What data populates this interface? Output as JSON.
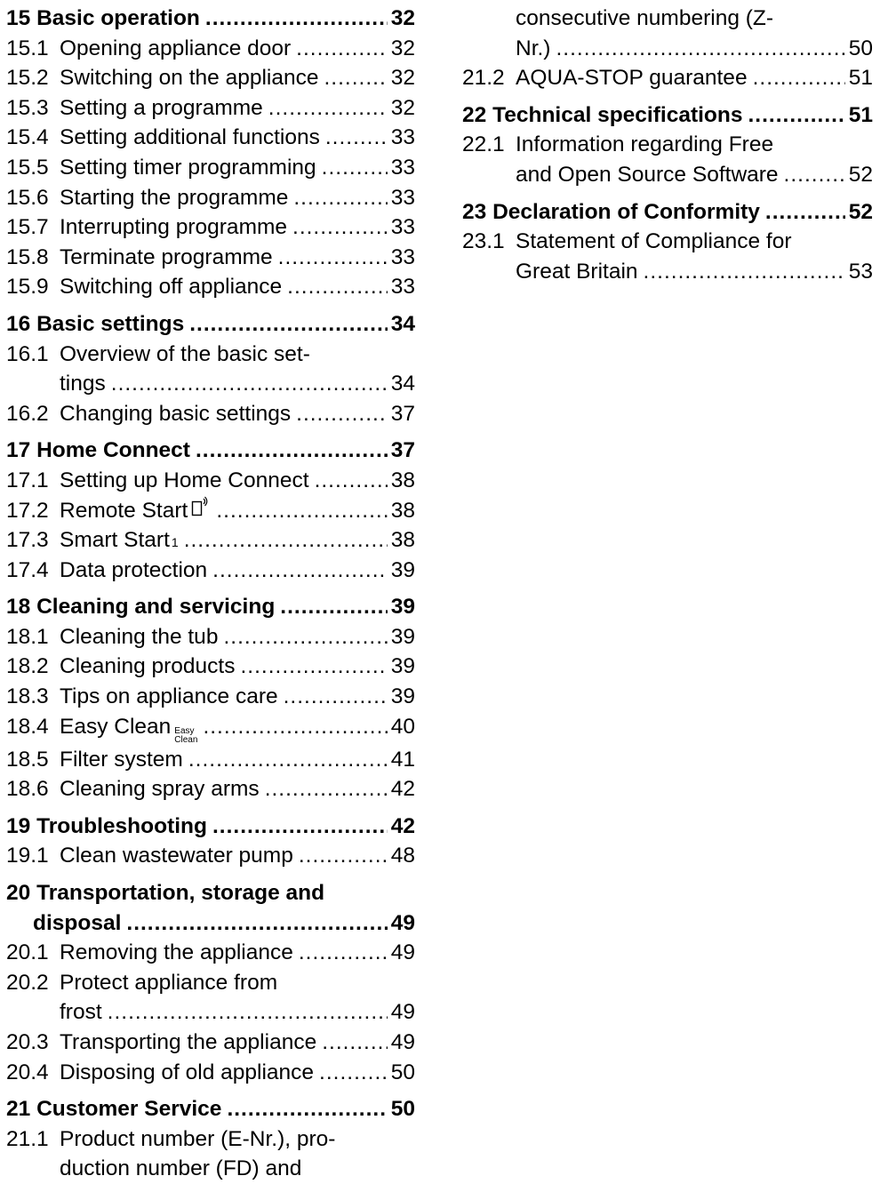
{
  "left": [
    {
      "type": "h",
      "num": "15",
      "title": "Basic operation",
      "page": "32",
      "gap": false
    },
    {
      "type": "s",
      "num": "15.1",
      "title": "Opening appliance door",
      "page": "32"
    },
    {
      "type": "s",
      "num": "15.2",
      "title": "Switching on the appliance",
      "page": "32"
    },
    {
      "type": "s",
      "num": "15.3",
      "title": "Setting a programme",
      "page": "32"
    },
    {
      "type": "s",
      "num": "15.4",
      "title": "Setting additional functions",
      "page": "33"
    },
    {
      "type": "s",
      "num": "15.5",
      "title": "Setting timer programming",
      "page": "33"
    },
    {
      "type": "s",
      "num": "15.6",
      "title": "Starting the programme",
      "page": "33"
    },
    {
      "type": "s",
      "num": "15.7",
      "title": "Interrupting programme",
      "page": "33"
    },
    {
      "type": "s",
      "num": "15.8",
      "title": "Terminate programme",
      "page": "33"
    },
    {
      "type": "s",
      "num": "15.9",
      "title": "Switching off appliance",
      "page": "33"
    },
    {
      "type": "h",
      "num": "16",
      "title": "Basic settings",
      "page": "34",
      "gap": true
    },
    {
      "type": "s",
      "num": "16.1",
      "title": "Overview of the basic set-",
      "page": ""
    },
    {
      "type": "c",
      "title": "tings",
      "page": "34"
    },
    {
      "type": "s",
      "num": "16.2",
      "title": "Changing basic settings",
      "page": "37"
    },
    {
      "type": "h",
      "num": "17",
      "title": "Home Connect",
      "page": "37",
      "gap": true
    },
    {
      "type": "s",
      "num": "17.1",
      "title": "Setting up Home Connect",
      "page": "38"
    },
    {
      "type": "s",
      "num": "17.2",
      "title": "Remote Start",
      "page": "38",
      "icon": "remote"
    },
    {
      "type": "s",
      "num": "17.3",
      "title": "Smart Start",
      "page": "38",
      "sup": "1"
    },
    {
      "type": "s",
      "num": "17.4",
      "title": "Data protection",
      "page": "39"
    },
    {
      "type": "h",
      "num": "18",
      "title": "Cleaning and servicing",
      "page": "39",
      "gap": true
    },
    {
      "type": "s",
      "num": "18.1",
      "title": "Cleaning the tub",
      "page": "39"
    },
    {
      "type": "s",
      "num": "18.2",
      "title": "Cleaning products",
      "page": "39"
    },
    {
      "type": "s",
      "num": "18.3",
      "title": "Tips on appliance care",
      "page": "39"
    },
    {
      "type": "s",
      "num": "18.4",
      "title": "Easy Clean",
      "page": "40",
      "icon": "easy"
    },
    {
      "type": "s",
      "num": "18.5",
      "title": "Filter system",
      "page": "41"
    },
    {
      "type": "s",
      "num": "18.6",
      "title": "Cleaning spray arms",
      "page": "42"
    },
    {
      "type": "h",
      "num": "19",
      "title": "Troubleshooting",
      "page": "42",
      "gap": true
    },
    {
      "type": "s",
      "num": "19.1",
      "title": "Clean wastewater pump",
      "page": "48"
    },
    {
      "type": "h",
      "num": "20",
      "title": "Transportation, storage and",
      "page": "",
      "gap": true
    },
    {
      "type": "hc",
      "title": "disposal",
      "page": "49"
    },
    {
      "type": "s",
      "num": "20.1",
      "title": "Removing the appliance",
      "page": "49"
    },
    {
      "type": "s",
      "num": "20.2",
      "title": "Protect appliance from",
      "page": ""
    },
    {
      "type": "c",
      "title": "frost",
      "page": "49"
    },
    {
      "type": "s",
      "num": "20.3",
      "title": "Transporting the appliance",
      "page": "49"
    },
    {
      "type": "s",
      "num": "20.4",
      "title": "Disposing of old appliance",
      "page": "50"
    },
    {
      "type": "h",
      "num": "21",
      "title": "Customer Service",
      "page": "50",
      "gap": true
    },
    {
      "type": "s",
      "num": "21.1",
      "title": "Product number (E-Nr.), pro-",
      "page": ""
    },
    {
      "type": "c",
      "title": "duction number (FD) and",
      "page": ""
    }
  ],
  "right": [
    {
      "type": "c",
      "title": "consecutive numbering (Z-",
      "page": ""
    },
    {
      "type": "c",
      "title": "Nr.)",
      "page": "50"
    },
    {
      "type": "s",
      "num": "21.2",
      "title": "AQUA-STOP guarantee",
      "page": "51"
    },
    {
      "type": "h",
      "num": "22",
      "title": "Technical specifications",
      "page": "51",
      "gap": true
    },
    {
      "type": "s",
      "num": "22.1",
      "title": "Information regarding Free",
      "page": ""
    },
    {
      "type": "c",
      "title": "and Open Source Software",
      "page": "52"
    },
    {
      "type": "h",
      "num": "23",
      "title": "Declaration of Conformity",
      "page": "52",
      "gap": true
    },
    {
      "type": "s",
      "num": "23.1",
      "title": "Statement of Compliance for",
      "page": ""
    },
    {
      "type": "c",
      "title": "Great Britain",
      "page": "53"
    }
  ],
  "icons": {
    "easy_top": "Easy",
    "easy_bottom": "Clean",
    "remote": "remote-start-icon"
  }
}
